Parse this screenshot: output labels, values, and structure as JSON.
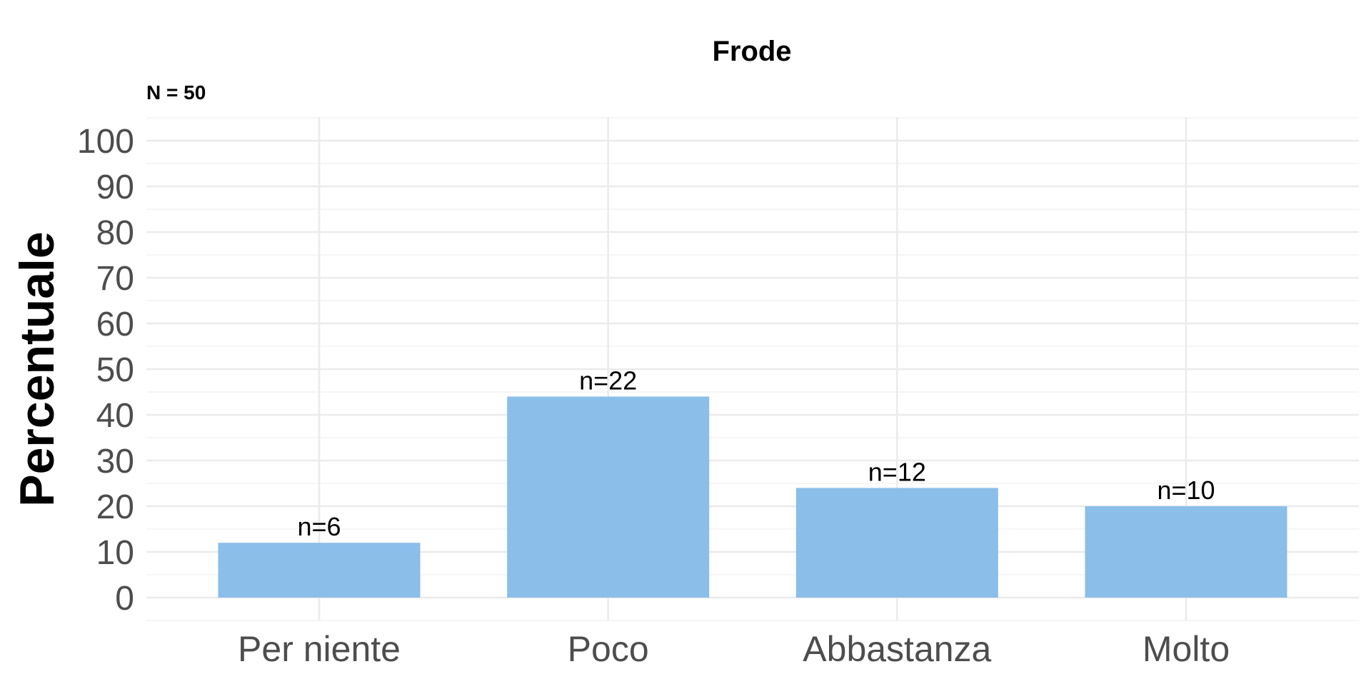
{
  "chart_data": {
    "type": "bar",
    "title": "Frode",
    "subtitle": "N = 50",
    "xlabel": "",
    "ylabel": "Percentuale",
    "categories": [
      "Per niente",
      "Poco",
      "Abbastanza",
      "Molto"
    ],
    "values": [
      12,
      44,
      24,
      20
    ],
    "data_labels": [
      "n=6",
      "n=22",
      "n=12",
      "n=10"
    ],
    "ylim": [
      0,
      100
    ],
    "y_ticks": [
      "0",
      "10",
      "20",
      "30",
      "40",
      "50",
      "60",
      "70",
      "80",
      "90",
      "100"
    ],
    "grid": true,
    "legend": "none",
    "colors": {
      "bar": "#8bbee9",
      "grid_major": "#ebebeb",
      "grid_minor": "#f3f3f3",
      "tick_text": "#4d4d4d",
      "text": "#000000"
    }
  }
}
